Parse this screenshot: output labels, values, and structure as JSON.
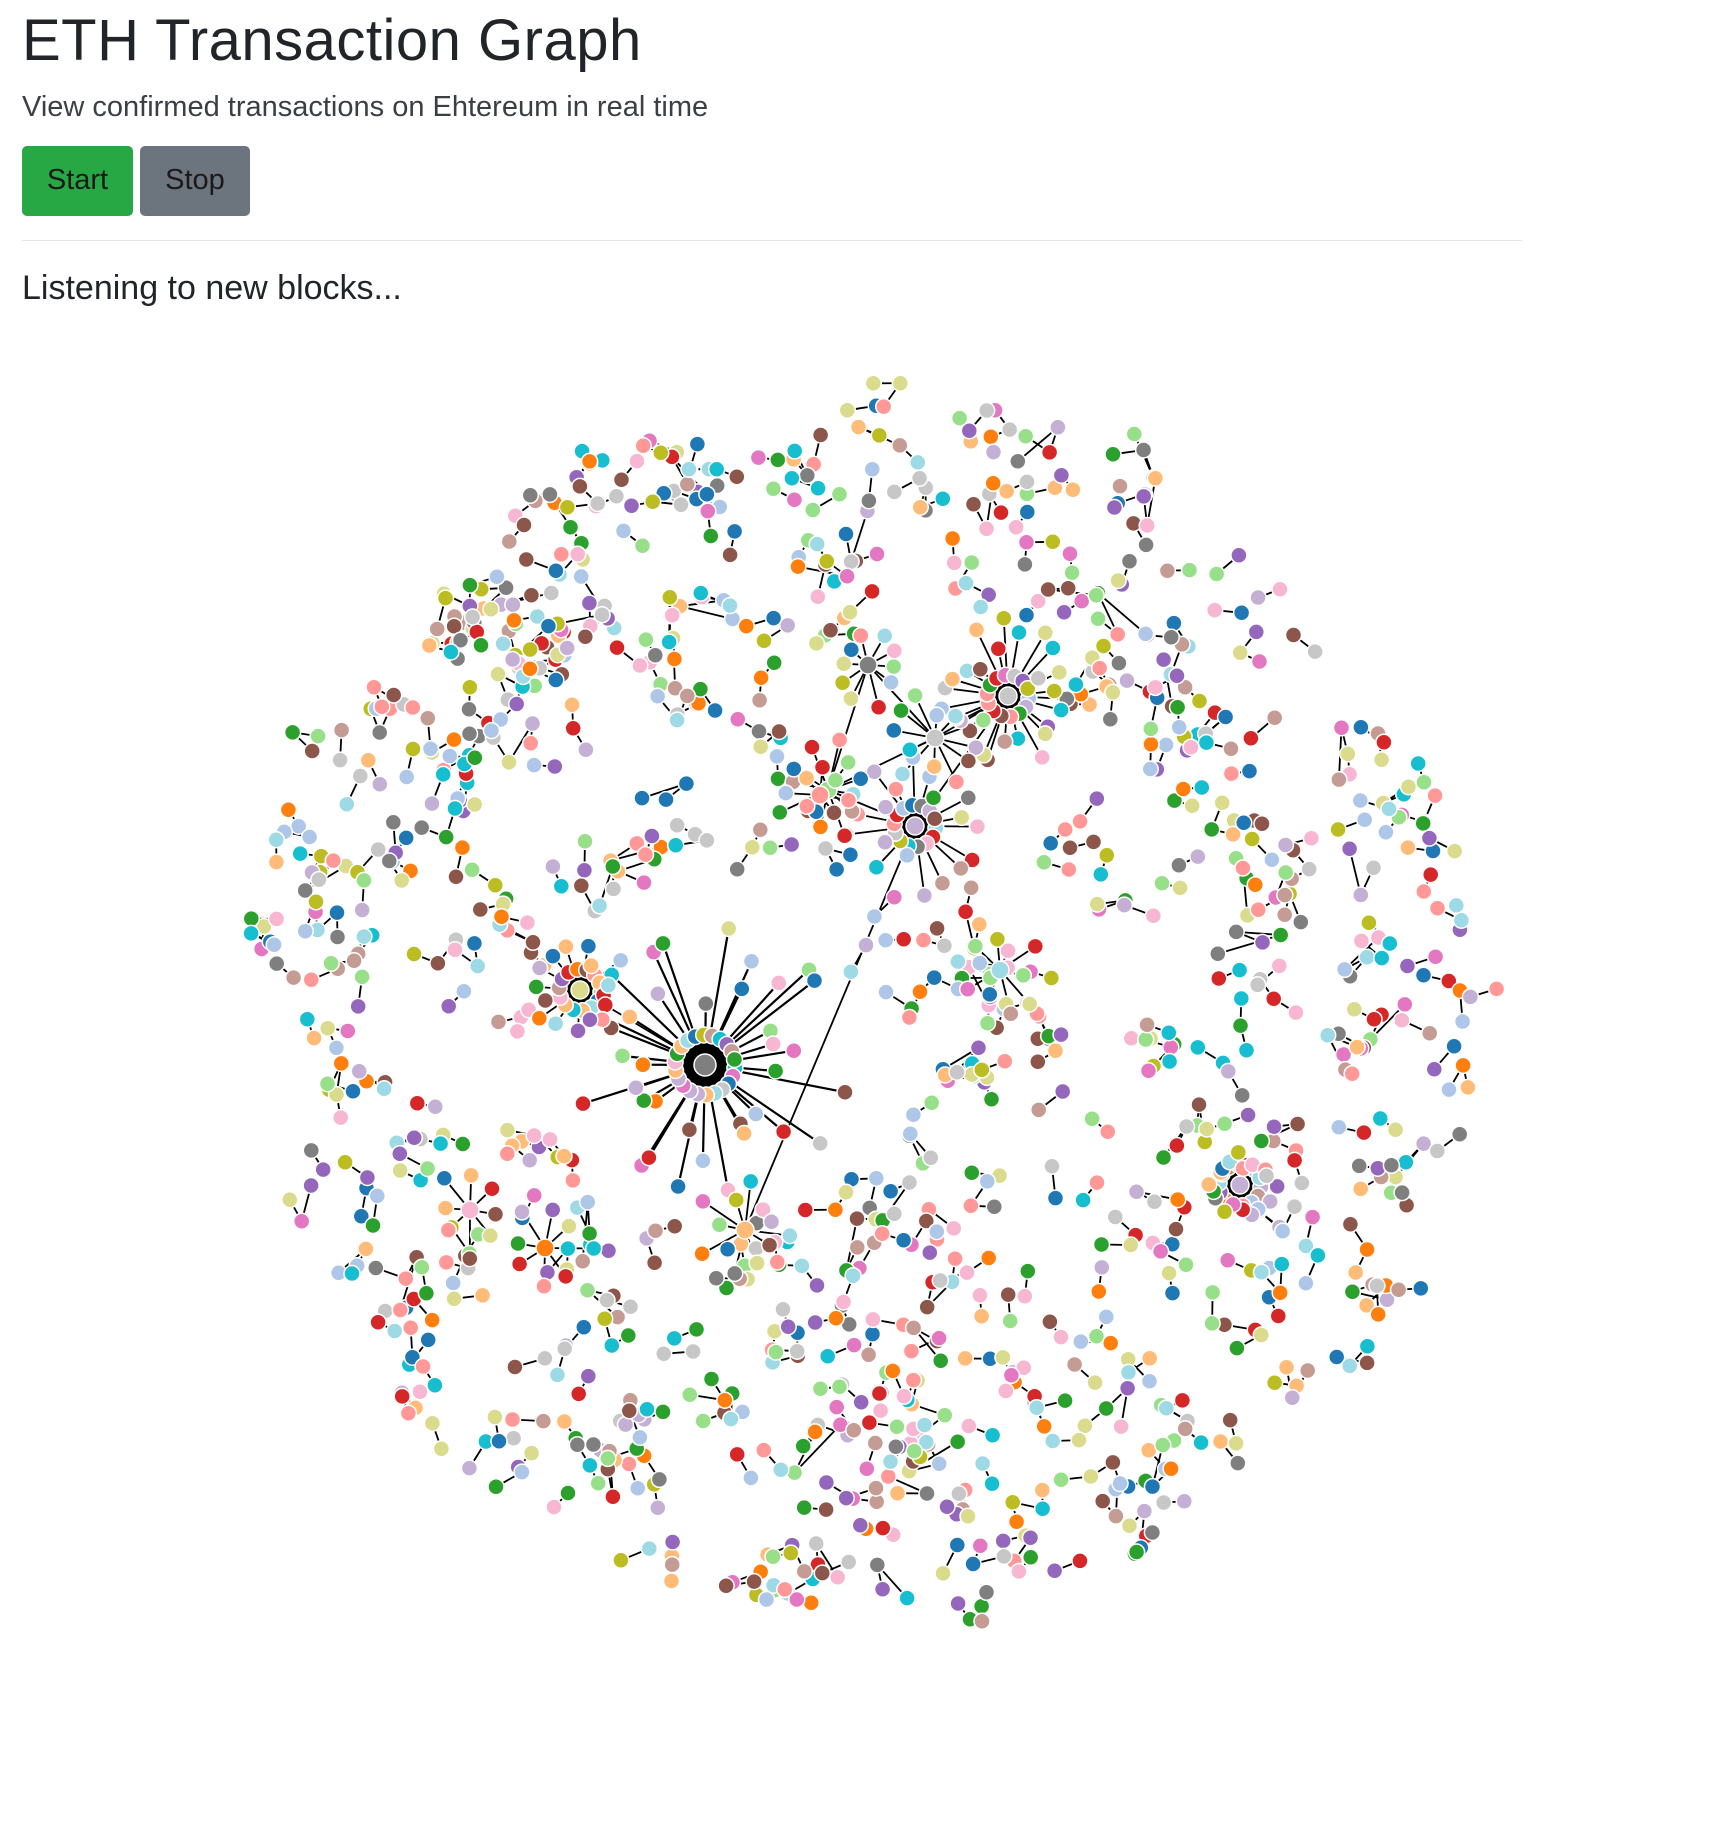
{
  "header": {
    "title": "ETH Transaction Graph",
    "subtitle": "View confirmed transactions on Ehtereum in real time"
  },
  "controls": {
    "start_label": "Start",
    "stop_label": "Stop"
  },
  "status": {
    "text": "Listening to new blocks..."
  },
  "graph": {
    "palette": [
      "#1f77b4",
      "#aec7e8",
      "#ff7f0e",
      "#ffbb78",
      "#2ca02c",
      "#98df8a",
      "#d62728",
      "#ff9896",
      "#9467bd",
      "#c5b0d5",
      "#8c564b",
      "#c49c94",
      "#e377c2",
      "#f7b6d2",
      "#7f7f7f",
      "#c7c7c7",
      "#bcbd22",
      "#dbdb8d",
      "#17becf",
      "#9edae5"
    ],
    "edge_color": "#000000",
    "node_stroke": "#ffffff"
  }
}
